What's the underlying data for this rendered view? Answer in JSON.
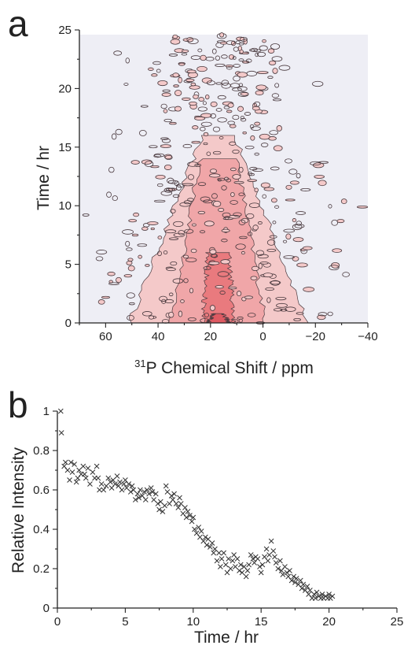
{
  "chart_data": [
    {
      "panel": "a",
      "type": "heatmap",
      "xlabel_sup": "31",
      "xlabel": "P Chemical Shift / ppm",
      "ylabel": "Time / hr",
      "xlim": [
        70,
        -40
      ],
      "ylim": [
        0,
        25
      ],
      "x_reversed": true,
      "xticks": [
        60,
        40,
        20,
        0,
        -20,
        -40
      ],
      "xtick_labels": [
        "60",
        "40",
        "20",
        "0",
        "−20",
        "−40"
      ],
      "yticks": [
        0,
        5,
        10,
        15,
        20,
        25
      ],
      "ytick_labels": [
        "0",
        "5",
        "10",
        "15",
        "20",
        "25"
      ],
      "peak_center_ppm": 17,
      "colors": {
        "background": "#eeeef5",
        "level1": "#f4c9c9",
        "level2": "#f0a6a8",
        "level3": "#e97a7e",
        "level4": "#de5a62",
        "contour": "#4a3a3f"
      }
    },
    {
      "panel": "b",
      "type": "scatter",
      "xlabel": "Time / hr",
      "ylabel": "Relative Intensity",
      "xlim": [
        0,
        25
      ],
      "ylim": [
        0,
        1
      ],
      "xticks": [
        0,
        5,
        10,
        15,
        20,
        25
      ],
      "xtick_labels": [
        "0",
        "5",
        "10",
        "15",
        "20",
        "25"
      ],
      "yticks": [
        0,
        0.2,
        0.4,
        0.6,
        0.8,
        1
      ],
      "ytick_labels": [
        "0",
        "0.2",
        "0.4",
        "0.6",
        "0.8",
        "1"
      ],
      "marker": "x",
      "points": [
        [
          0.25,
          1.0
        ],
        [
          0.3,
          0.89
        ],
        [
          0.5,
          0.72
        ],
        [
          0.6,
          0.74
        ],
        [
          0.75,
          0.7
        ],
        [
          0.9,
          0.65
        ],
        [
          1.0,
          0.74
        ],
        [
          1.1,
          0.69
        ],
        [
          1.25,
          0.73
        ],
        [
          1.4,
          0.64
        ],
        [
          1.5,
          0.66
        ],
        [
          1.6,
          0.7
        ],
        [
          1.75,
          0.68
        ],
        [
          1.9,
          0.72
        ],
        [
          2.0,
          0.68
        ],
        [
          2.1,
          0.66
        ],
        [
          2.25,
          0.71
        ],
        [
          2.4,
          0.63
        ],
        [
          2.6,
          0.69
        ],
        [
          2.75,
          0.66
        ],
        [
          2.9,
          0.72
        ],
        [
          3.0,
          0.66
        ],
        [
          3.1,
          0.6
        ],
        [
          3.25,
          0.63
        ],
        [
          3.4,
          0.6
        ],
        [
          3.6,
          0.62
        ],
        [
          3.75,
          0.66
        ],
        [
          3.9,
          0.64
        ],
        [
          4.0,
          0.61
        ],
        [
          4.1,
          0.65
        ],
        [
          4.25,
          0.63
        ],
        [
          4.4,
          0.67
        ],
        [
          4.5,
          0.62
        ],
        [
          4.6,
          0.64
        ],
        [
          4.75,
          0.6
        ],
        [
          4.9,
          0.63
        ],
        [
          5.0,
          0.65
        ],
        [
          5.1,
          0.61
        ],
        [
          5.25,
          0.63
        ],
        [
          5.4,
          0.59
        ],
        [
          5.5,
          0.62
        ],
        [
          5.6,
          0.6
        ],
        [
          5.75,
          0.55
        ],
        [
          5.9,
          0.58
        ],
        [
          6.0,
          0.56
        ],
        [
          6.1,
          0.6
        ],
        [
          6.25,
          0.57
        ],
        [
          6.4,
          0.59
        ],
        [
          6.5,
          0.55
        ],
        [
          6.6,
          0.6
        ],
        [
          6.75,
          0.58
        ],
        [
          6.9,
          0.61
        ],
        [
          7.0,
          0.59
        ],
        [
          7.1,
          0.55
        ],
        [
          7.25,
          0.58
        ],
        [
          7.4,
          0.53
        ],
        [
          7.5,
          0.5
        ],
        [
          7.6,
          0.54
        ],
        [
          7.75,
          0.49
        ],
        [
          7.9,
          0.52
        ],
        [
          8.0,
          0.62
        ],
        [
          8.1,
          0.59
        ],
        [
          8.25,
          0.53
        ],
        [
          8.4,
          0.57
        ],
        [
          8.5,
          0.55
        ],
        [
          8.6,
          0.58
        ],
        [
          8.75,
          0.53
        ],
        [
          8.9,
          0.51
        ],
        [
          9.0,
          0.56
        ],
        [
          9.1,
          0.53
        ],
        [
          9.25,
          0.48
        ],
        [
          9.4,
          0.51
        ],
        [
          9.5,
          0.46
        ],
        [
          9.6,
          0.49
        ],
        [
          9.75,
          0.47
        ],
        [
          9.9,
          0.44
        ],
        [
          10.0,
          0.46
        ],
        [
          10.1,
          0.4
        ],
        [
          10.25,
          0.38
        ],
        [
          10.4,
          0.41
        ],
        [
          10.5,
          0.36
        ],
        [
          10.6,
          0.39
        ],
        [
          10.75,
          0.34
        ],
        [
          10.9,
          0.36
        ],
        [
          11.0,
          0.32
        ],
        [
          11.1,
          0.35
        ],
        [
          11.25,
          0.31
        ],
        [
          11.4,
          0.33
        ],
        [
          11.5,
          0.28
        ],
        [
          11.6,
          0.3
        ],
        [
          11.75,
          0.24
        ],
        [
          11.9,
          0.28
        ],
        [
          12.0,
          0.21
        ],
        [
          12.1,
          0.25
        ],
        [
          12.25,
          0.28
        ],
        [
          12.4,
          0.22
        ],
        [
          12.5,
          0.18
        ],
        [
          12.6,
          0.25
        ],
        [
          12.75,
          0.2
        ],
        [
          12.9,
          0.24
        ],
        [
          13.0,
          0.27
        ],
        [
          13.1,
          0.21
        ],
        [
          13.25,
          0.25
        ],
        [
          13.4,
          0.19
        ],
        [
          13.5,
          0.22
        ],
        [
          13.6,
          0.18
        ],
        [
          13.75,
          0.21
        ],
        [
          13.9,
          0.16
        ],
        [
          14.0,
          0.19
        ],
        [
          14.1,
          0.22
        ],
        [
          14.25,
          0.27
        ],
        [
          14.4,
          0.25
        ],
        [
          14.5,
          0.23
        ],
        [
          14.6,
          0.26
        ],
        [
          14.75,
          0.25
        ],
        [
          14.9,
          0.21
        ],
        [
          15.0,
          0.18
        ],
        [
          15.1,
          0.22
        ],
        [
          15.25,
          0.26
        ],
        [
          15.4,
          0.3
        ],
        [
          15.5,
          0.24
        ],
        [
          15.6,
          0.27
        ],
        [
          15.75,
          0.34
        ],
        [
          15.9,
          0.29
        ],
        [
          16.0,
          0.26
        ],
        [
          16.1,
          0.23
        ],
        [
          16.25,
          0.2
        ],
        [
          16.4,
          0.24
        ],
        [
          16.5,
          0.19
        ],
        [
          16.6,
          0.17
        ],
        [
          16.75,
          0.21
        ],
        [
          16.9,
          0.18
        ],
        [
          17.0,
          0.16
        ],
        [
          17.1,
          0.19
        ],
        [
          17.25,
          0.14
        ],
        [
          17.4,
          0.16
        ],
        [
          17.5,
          0.13
        ],
        [
          17.6,
          0.15
        ],
        [
          17.75,
          0.12
        ],
        [
          17.9,
          0.14
        ],
        [
          18.0,
          0.1
        ],
        [
          18.1,
          0.12
        ],
        [
          18.25,
          0.09
        ],
        [
          18.4,
          0.11
        ],
        [
          18.5,
          0.07
        ],
        [
          18.6,
          0.09
        ],
        [
          18.75,
          0.05
        ],
        [
          18.9,
          0.07
        ],
        [
          19.0,
          0.05
        ],
        [
          19.1,
          0.08
        ],
        [
          19.25,
          0.06
        ],
        [
          19.4,
          0.05
        ],
        [
          19.5,
          0.07
        ],
        [
          19.6,
          0.05
        ],
        [
          19.75,
          0.06
        ],
        [
          19.9,
          0.05
        ],
        [
          20.0,
          0.07
        ],
        [
          20.1,
          0.05
        ],
        [
          20.25,
          0.06
        ]
      ]
    }
  ]
}
